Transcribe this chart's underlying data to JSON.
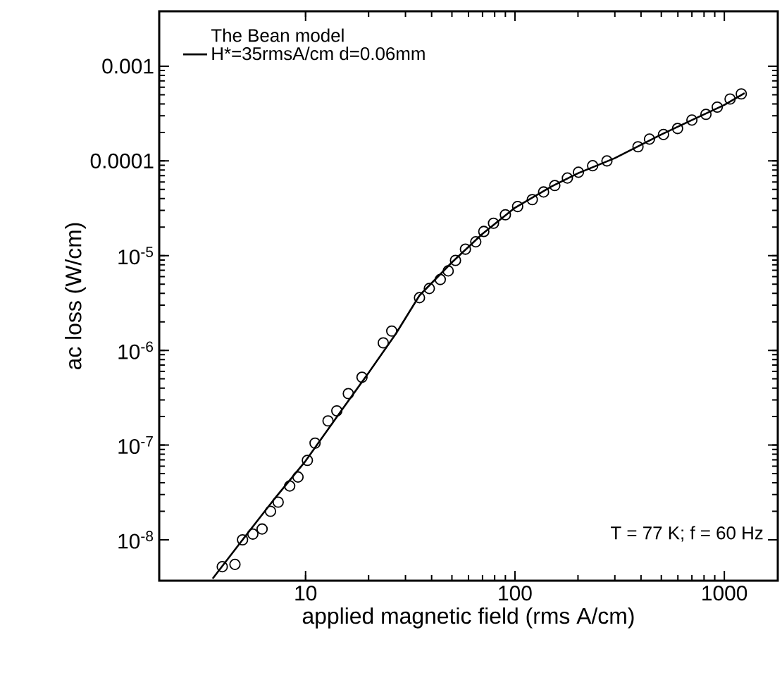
{
  "chart_data": {
    "type": "scatter",
    "xlabel": "applied magnetic field (rms A/cm)",
    "ylabel": "ac loss (W/cm)",
    "legend_title": "The Bean model",
    "log": "xy",
    "legend": "top left",
    "annotations": [
      "T = 77 K;  f = 60 Hz"
    ],
    "xlim": [
      2,
      1800
    ],
    "ylim": [
      3.7e-09,
      0.0038
    ],
    "xticks": [
      10,
      100,
      1000
    ],
    "yticks": [
      {
        "value": 1e-08,
        "label": "10$^{-8}$"
      },
      {
        "value": 1e-07,
        "label": "10$^{-7}$"
      },
      {
        "value": 1e-06,
        "label": "10$^{-6}$"
      },
      {
        "value": 1e-05,
        "label": "10$^{-5}$"
      },
      {
        "value": 0.0001,
        "label": "0.0001"
      },
      {
        "value": 0.001,
        "label": "0.001"
      }
    ],
    "series": [
      {
        "color": "#000000",
        "marker": "circle",
        "x": [
          4.0,
          4.6,
          5.0,
          5.6,
          6.2,
          6.8,
          7.4,
          8.4,
          9.2,
          10.2,
          11.1,
          12.8,
          14.1,
          16,
          18.6,
          23.5,
          25.8,
          35,
          39,
          44,
          48,
          52,
          58,
          65,
          71,
          79,
          90,
          103,
          121,
          137,
          155,
          178,
          201,
          235,
          275,
          387,
          439,
          512,
          598,
          700,
          817,
          925,
          1065,
          1205
        ],
        "values": [
          5.2e-09,
          5.5e-09,
          1e-08,
          1.15e-08,
          1.3e-08,
          2e-08,
          2.5e-08,
          3.7e-08,
          4.6e-08,
          6.9e-08,
          1.05e-07,
          1.8e-07,
          2.3e-07,
          3.5e-07,
          5.2e-07,
          1.2e-06,
          1.6e-06,
          3.6e-06,
          4.5e-06,
          5.6e-06,
          6.9e-06,
          8.9e-06,
          1.17e-05,
          1.4e-05,
          1.8e-05,
          2.2e-05,
          2.7e-05,
          3.3e-05,
          3.9e-05,
          4.7e-05,
          5.5e-05,
          6.6e-05,
          7.6e-05,
          8.9e-05,
          0.0001,
          0.000141,
          0.00017,
          0.00019,
          0.00022,
          0.00027,
          0.00031,
          0.00037,
          0.00045,
          0.00051
        ]
      },
      {
        "type": "line",
        "name": "H*=35rmsA/cm d=0.06mm",
        "color": "#000000",
        "marker": "none",
        "x": [
          3.6,
          5,
          7,
          10,
          15,
          20,
          27,
          35,
          50,
          70,
          100,
          150,
          200,
          300,
          500,
          700,
          1000,
          1250
        ],
        "values": [
          3.9e-09,
          1e-08,
          2.6e-08,
          6.8e-08,
          2.4e-07,
          5.8e-07,
          1.5e-06,
          3.8e-06,
          8.5e-06,
          1.7e-05,
          3.2e-05,
          5.4e-05,
          7.4e-05,
          0.000107,
          0.00019,
          0.00027,
          0.00039,
          0.00052
        ]
      }
    ]
  }
}
